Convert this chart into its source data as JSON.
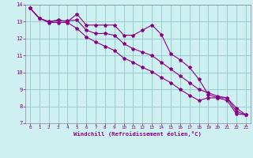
{
  "xlabel": "Windchill (Refroidissement éolien,°C)",
  "bg_color": "#cff0f0",
  "grid_color": "#99cccc",
  "line_color": "#880088",
  "xlim": [
    -0.5,
    23.5
  ],
  "ylim": [
    7,
    14
  ],
  "yticks": [
    7,
    8,
    9,
    10,
    11,
    12,
    13,
    14
  ],
  "xticks": [
    0,
    1,
    2,
    3,
    4,
    5,
    6,
    7,
    8,
    9,
    10,
    11,
    12,
    13,
    14,
    15,
    16,
    17,
    18,
    19,
    20,
    21,
    22,
    23
  ],
  "line1": [
    13.8,
    13.2,
    13.0,
    13.1,
    13.0,
    13.45,
    12.8,
    12.8,
    12.8,
    12.8,
    12.2,
    12.2,
    12.5,
    12.8,
    12.25,
    11.1,
    10.75,
    10.3,
    9.6,
    8.7,
    8.5,
    8.5,
    7.7,
    7.5
  ],
  "line2": [
    13.8,
    13.2,
    13.0,
    13.05,
    13.05,
    13.1,
    12.5,
    12.3,
    12.3,
    12.2,
    11.7,
    11.4,
    11.2,
    11.0,
    10.6,
    10.2,
    9.8,
    9.4,
    9.0,
    8.8,
    8.6,
    8.5,
    7.9,
    7.5
  ],
  "line3": [
    13.8,
    13.2,
    12.95,
    12.95,
    12.95,
    12.6,
    12.1,
    11.8,
    11.55,
    11.3,
    10.85,
    10.6,
    10.3,
    10.05,
    9.7,
    9.4,
    9.0,
    8.65,
    8.35,
    8.5,
    8.5,
    8.35,
    7.55,
    7.5
  ]
}
